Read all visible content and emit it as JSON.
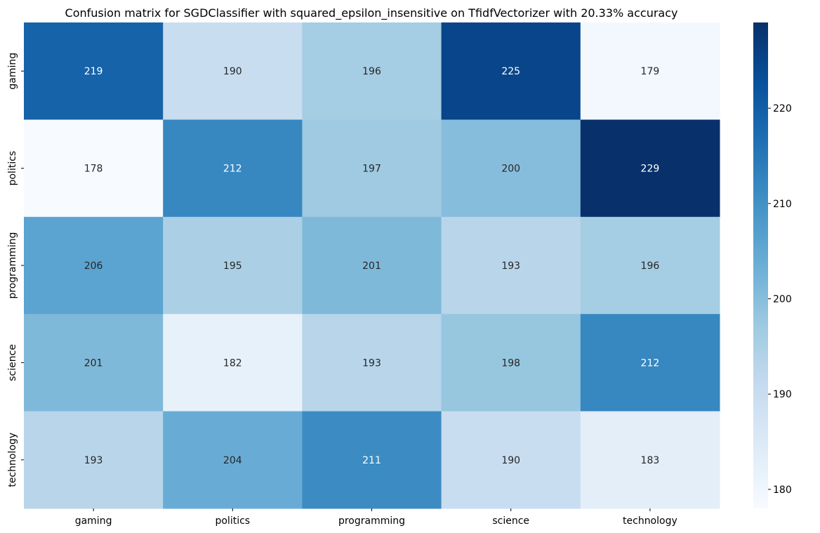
{
  "chart_data": {
    "type": "heatmap",
    "title": "Confusion matrix for SGDClassifier with squared_epsilon_insensitive on TfidfVectorizer with 20.33% accuracy",
    "xlabel": "",
    "ylabel": "",
    "x_categories": [
      "gaming",
      "politics",
      "programming",
      "science",
      "technology"
    ],
    "y_categories": [
      "gaming",
      "politics",
      "programming",
      "science",
      "technology"
    ],
    "values": [
      [
        219,
        190,
        196,
        225,
        179
      ],
      [
        178,
        212,
        197,
        200,
        229
      ],
      [
        206,
        195,
        201,
        193,
        196
      ],
      [
        201,
        182,
        193,
        198,
        212
      ],
      [
        193,
        204,
        211,
        190,
        183
      ]
    ],
    "colormap": "Blues",
    "color_range": [
      178,
      229
    ],
    "colorbar_ticks": [
      180,
      190,
      200,
      210,
      220
    ],
    "annotations": true,
    "colors": {
      "light_text": "#ffffff",
      "dark_text": "#262626",
      "scale": [
        "#f7fbff",
        "#deebf7",
        "#c6dbef",
        "#9ecae1",
        "#6baed6",
        "#4292c6",
        "#2171b5",
        "#08519c",
        "#08306b"
      ]
    }
  }
}
